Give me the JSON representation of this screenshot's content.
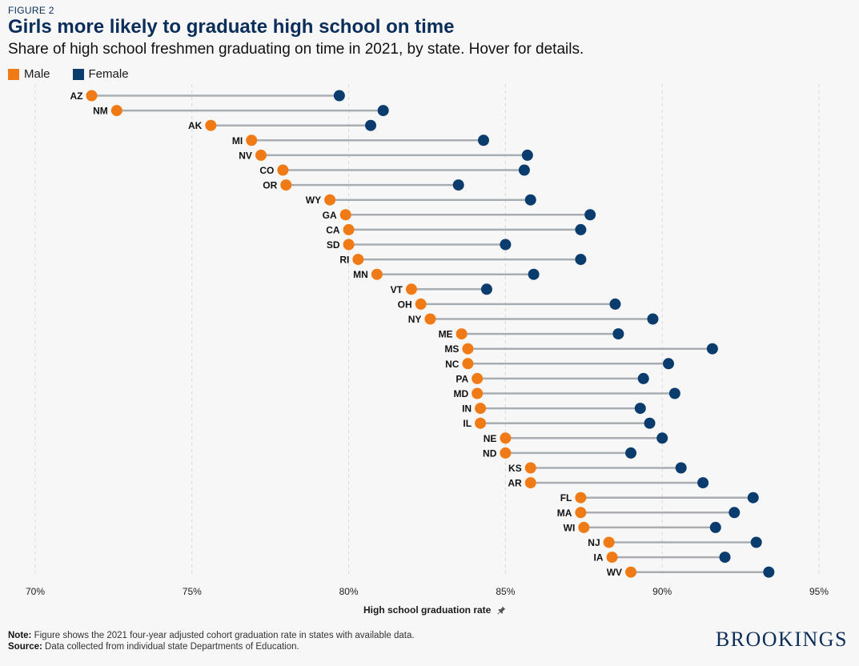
{
  "header": {
    "figure_label": "FIGURE 2",
    "title": "Girls more likely to graduate high school on time",
    "subtitle": "Share of high school freshmen graduating on time in 2021, by state. Hover for details."
  },
  "legend": {
    "male_label": "Male",
    "female_label": "Female"
  },
  "colors": {
    "male": "#f07b16",
    "female": "#0a3c6e",
    "connector": "#a9adb2",
    "grid": "#d9d9d9"
  },
  "axis": {
    "title": "High school graduation rate",
    "pin_icon": "pushpin-icon"
  },
  "footer": {
    "note_label": "Note:",
    "note_text": "Figure shows the 2021 four-year adjusted cohort graduation rate in states with available data.",
    "source_label": "Source:",
    "source_text": "Data collected from individual state Departments of Education.",
    "brand": "BROOKINGS"
  },
  "chart_data": {
    "type": "dumbbell",
    "title": "Girls more likely to graduate high school on time",
    "xlabel": "High school graduation rate",
    "ylabel": "",
    "xlim": [
      70,
      95
    ],
    "xticks": [
      70,
      75,
      80,
      85,
      90,
      95
    ],
    "xtick_labels": [
      "70%",
      "75%",
      "80%",
      "85%",
      "90%",
      "95%"
    ],
    "grid": "vertical",
    "series_names": [
      "Male",
      "Female"
    ],
    "rows": [
      {
        "state": "AZ",
        "male": 71.8,
        "female": 79.7
      },
      {
        "state": "NM",
        "male": 72.6,
        "female": 81.1
      },
      {
        "state": "AK",
        "male": 75.6,
        "female": 80.7
      },
      {
        "state": "MI",
        "male": 76.9,
        "female": 84.3
      },
      {
        "state": "NV",
        "male": 77.2,
        "female": 85.7
      },
      {
        "state": "CO",
        "male": 77.9,
        "female": 85.6
      },
      {
        "state": "OR",
        "male": 78.0,
        "female": 83.5
      },
      {
        "state": "WY",
        "male": 79.4,
        "female": 85.8
      },
      {
        "state": "GA",
        "male": 79.9,
        "female": 87.7
      },
      {
        "state": "CA",
        "male": 80.0,
        "female": 87.4
      },
      {
        "state": "SD",
        "male": 80.0,
        "female": 85.0
      },
      {
        "state": "RI",
        "male": 80.3,
        "female": 87.4
      },
      {
        "state": "MN",
        "male": 80.9,
        "female": 85.9
      },
      {
        "state": "VT",
        "male": 82.0,
        "female": 84.4
      },
      {
        "state": "OH",
        "male": 82.3,
        "female": 88.5
      },
      {
        "state": "NY",
        "male": 82.6,
        "female": 89.7
      },
      {
        "state": "ME",
        "male": 83.6,
        "female": 88.6
      },
      {
        "state": "MS",
        "male": 83.8,
        "female": 91.6
      },
      {
        "state": "NC",
        "male": 83.8,
        "female": 90.2
      },
      {
        "state": "PA",
        "male": 84.1,
        "female": 89.4
      },
      {
        "state": "MD",
        "male": 84.1,
        "female": 90.4
      },
      {
        "state": "IN",
        "male": 84.2,
        "female": 89.3
      },
      {
        "state": "IL",
        "male": 84.2,
        "female": 89.6
      },
      {
        "state": "NE",
        "male": 85.0,
        "female": 90.0
      },
      {
        "state": "ND",
        "male": 85.0,
        "female": 89.0
      },
      {
        "state": "KS",
        "male": 85.8,
        "female": 90.6
      },
      {
        "state": "AR",
        "male": 85.8,
        "female": 91.3
      },
      {
        "state": "FL",
        "male": 87.4,
        "female": 92.9
      },
      {
        "state": "MA",
        "male": 87.4,
        "female": 92.3
      },
      {
        "state": "WI",
        "male": 87.5,
        "female": 91.7
      },
      {
        "state": "NJ",
        "male": 88.3,
        "female": 93.0
      },
      {
        "state": "IA",
        "male": 88.4,
        "female": 92.0
      },
      {
        "state": "WV",
        "male": 89.0,
        "female": 93.4
      }
    ]
  }
}
